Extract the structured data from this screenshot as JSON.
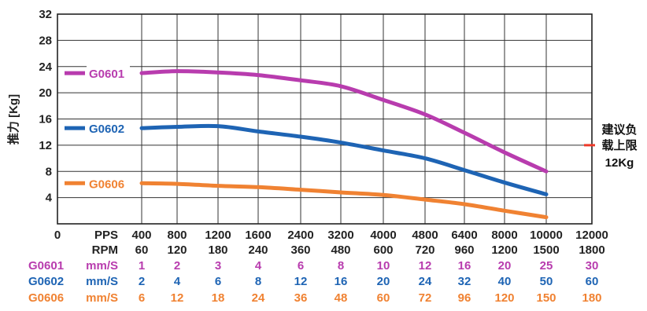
{
  "chart_data": {
    "type": "line",
    "ylabel": "推力 [Kg]",
    "y_ticks": [
      "4",
      "8",
      "12",
      "16",
      "20",
      "24",
      "28",
      "32"
    ],
    "ylim": [
      0,
      32
    ],
    "origin_label": "0",
    "pps_label": "PPS",
    "rpm_label": "RPM",
    "pps": [
      "400",
      "800",
      "1200",
      "1600",
      "2400",
      "3200",
      "4000",
      "4800",
      "6400",
      "8000",
      "10000",
      "12000"
    ],
    "rpm": [
      "60",
      "120",
      "180",
      "240",
      "360",
      "480",
      "600",
      "720",
      "960",
      "1200",
      "1500",
      "1800"
    ],
    "grid": "on",
    "series": [
      {
        "name": "G0601",
        "color": "#b83cae",
        "speed_unit": "mm/S",
        "speeds": [
          "1",
          "2",
          "3",
          "4",
          "6",
          "8",
          "10",
          "12",
          "16",
          "20",
          "25",
          "30"
        ],
        "values": [
          23.0,
          23.3,
          23.1,
          22.7,
          21.9,
          21.0,
          18.9,
          16.7,
          13.9,
          10.9,
          8.0
        ]
      },
      {
        "name": "G0602",
        "color": "#1e64b4",
        "speed_unit": "mm/S",
        "speeds": [
          "2",
          "4",
          "6",
          "8",
          "12",
          "16",
          "20",
          "24",
          "32",
          "40",
          "50",
          "60"
        ],
        "values": [
          14.6,
          14.8,
          14.9,
          14.1,
          13.3,
          12.4,
          11.2,
          10.0,
          8.2,
          6.3,
          4.5
        ]
      },
      {
        "name": "G0606",
        "color": "#f08232",
        "speed_unit": "mm/S",
        "speeds": [
          "6",
          "12",
          "18",
          "24",
          "36",
          "48",
          "60",
          "72",
          "96",
          "120",
          "150",
          "180"
        ],
        "values": [
          6.2,
          6.1,
          5.8,
          5.6,
          5.2,
          4.8,
          4.4,
          3.7,
          3.0,
          2.0,
          1.0
        ]
      }
    ],
    "annotation": {
      "text_lines": [
        "建议负",
        "载上限",
        "12Kg"
      ],
      "value": 12,
      "color": "#ee3a2a"
    }
  }
}
